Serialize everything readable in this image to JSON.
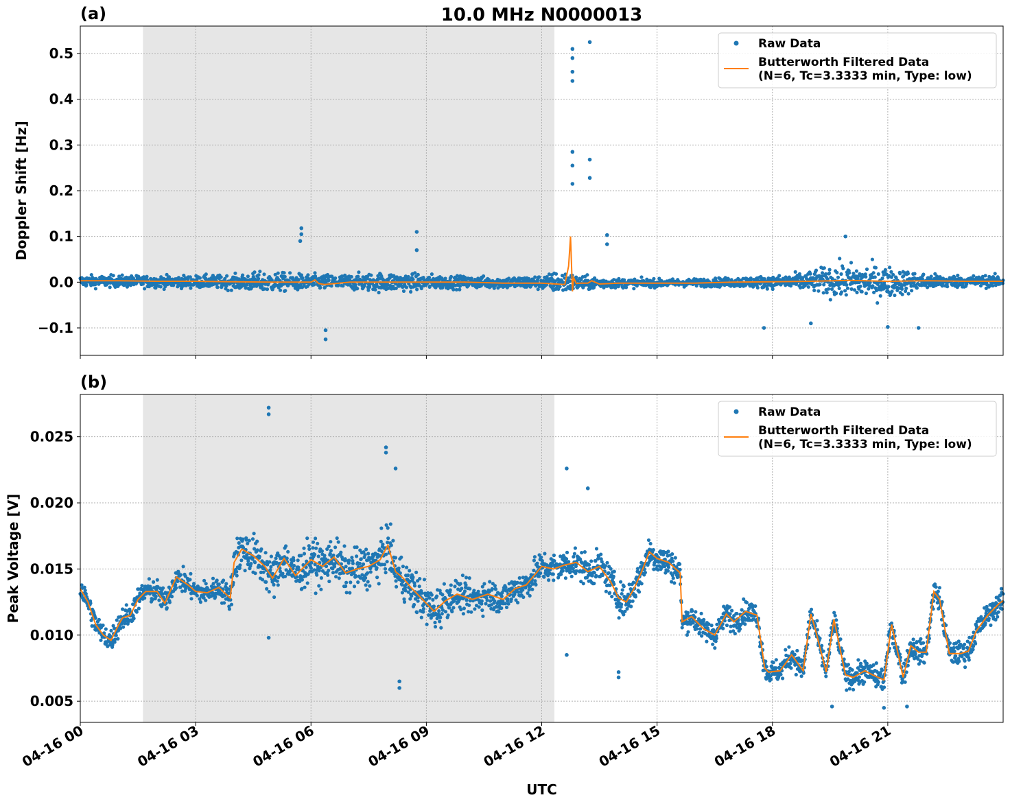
{
  "figure": {
    "title": "10.0 MHz N0000013",
    "xlabel": "UTC"
  },
  "colors": {
    "raw": "#1f77b4",
    "filtered": "#ff7f0e",
    "shade": "#e6e6e6",
    "grid": "#b0b0b0"
  },
  "legend": {
    "raw_label": "Raw Data",
    "filtered_line1": "Butterworth Filtered Data",
    "filtered_line2": "(N=6, Tc=3.3333 min, Type: low)"
  },
  "chart_data": [
    {
      "type": "scatter",
      "panel_label": "(a)",
      "title": "10.0 MHz N0000013",
      "xlabel": "",
      "ylabel": "Doppler Shift [Hz]",
      "xlim_hours": [
        0,
        24
      ],
      "ylim": [
        -0.16,
        0.56
      ],
      "yticks": [
        -0.1,
        0.0,
        0.1,
        0.2,
        0.3,
        0.4,
        0.5
      ],
      "ytick_labels": [
        "−0.1",
        "0.0",
        "0.1",
        "0.2",
        "0.3",
        "0.4",
        "0.5"
      ],
      "shaded_region_hours": [
        1.63,
        12.33
      ],
      "grid": true,
      "legend_position": "top-right",
      "series": [
        {
          "name": "Raw Data",
          "style": "points",
          "band_profile": {
            "x_hours": [
              0,
              1,
              2,
              3,
              4,
              4.5,
              5,
              6,
              7,
              8,
              9,
              10,
              11,
              12,
              12.5,
              13,
              14,
              15,
              16,
              17,
              17.5,
              18,
              19,
              19.5,
              20,
              21,
              22,
              23,
              24
            ],
            "center": [
              0.002,
              0.002,
              0.001,
              0.001,
              0.0,
              0.0,
              0.0,
              0.0,
              0.0,
              0.0,
              0.0,
              0.0,
              -0.001,
              -0.001,
              0.0,
              -0.002,
              -0.002,
              -0.002,
              -0.001,
              0.0,
              0.0,
              0.0,
              0.002,
              0.003,
              0.002,
              0.0,
              0.001,
              0.002,
              0.002
            ],
            "halfwidth": [
              0.015,
              0.015,
              0.015,
              0.016,
              0.018,
              0.025,
              0.025,
              0.02,
              0.02,
              0.025,
              0.02,
              0.015,
              0.015,
              0.018,
              0.03,
              0.018,
              0.012,
              0.01,
              0.01,
              0.012,
              0.015,
              0.015,
              0.025,
              0.04,
              0.045,
              0.04,
              0.02,
              0.015,
              0.015
            ]
          },
          "outliers": [
            {
              "x": 5.75,
              "y": 0.118
            },
            {
              "x": 5.75,
              "y": 0.105
            },
            {
              "x": 5.72,
              "y": 0.09
            },
            {
              "x": 6.38,
              "y": -0.105
            },
            {
              "x": 6.38,
              "y": -0.125
            },
            {
              "x": 8.75,
              "y": 0.11
            },
            {
              "x": 8.75,
              "y": 0.07
            },
            {
              "x": 12.8,
              "y": 0.51
            },
            {
              "x": 12.8,
              "y": 0.49
            },
            {
              "x": 12.8,
              "y": 0.46
            },
            {
              "x": 12.8,
              "y": 0.44
            },
            {
              "x": 12.8,
              "y": 0.285
            },
            {
              "x": 12.8,
              "y": 0.255
            },
            {
              "x": 12.8,
              "y": 0.215
            },
            {
              "x": 13.25,
              "y": 0.525
            },
            {
              "x": 13.25,
              "y": 0.268
            },
            {
              "x": 13.25,
              "y": 0.228
            },
            {
              "x": 13.7,
              "y": 0.103
            },
            {
              "x": 13.7,
              "y": 0.083
            },
            {
              "x": 17.78,
              "y": -0.1
            },
            {
              "x": 19.0,
              "y": -0.09
            },
            {
              "x": 19.9,
              "y": 0.1
            },
            {
              "x": 21.0,
              "y": -0.098
            },
            {
              "x": 21.8,
              "y": -0.1
            }
          ]
        },
        {
          "name": "Butterworth Filtered Data\n(N=6, Tc=3.3333 min, Type: low)",
          "style": "line",
          "x_hours": [
            0,
            1,
            2,
            3,
            4,
            5,
            6,
            6.1,
            6.2,
            6.35,
            7,
            8,
            9,
            10,
            11,
            12,
            12.6,
            12.7,
            12.75,
            12.8,
            12.83,
            12.9,
            13.0,
            13.2,
            13.3,
            13.5,
            14,
            15,
            16,
            17,
            18,
            19,
            20,
            21,
            22,
            23,
            24
          ],
          "y": [
            0.003,
            0.003,
            0.002,
            0.002,
            0.001,
            0.0,
            0.0,
            0.005,
            -0.003,
            -0.005,
            0.0,
            0.0,
            0.0,
            0.0,
            -0.002,
            -0.002,
            -0.005,
            0.035,
            0.1,
            -0.02,
            0.01,
            -0.003,
            -0.002,
            -0.002,
            0.003,
            -0.004,
            -0.002,
            -0.002,
            -0.002,
            0.0,
            0.001,
            0.002,
            0.004,
            0.002,
            0.003,
            0.002,
            0.002
          ]
        }
      ]
    },
    {
      "type": "scatter",
      "panel_label": "(b)",
      "xlabel": "UTC",
      "ylabel": "Peak Voltage [V]",
      "xlim_hours": [
        0,
        24
      ],
      "ylim": [
        0.0034,
        0.0282
      ],
      "yticks": [
        0.005,
        0.01,
        0.015,
        0.02,
        0.025
      ],
      "ytick_labels": [
        "0.005",
        "0.010",
        "0.015",
        "0.020",
        "0.025"
      ],
      "xtick_labels": [
        "04-16 00",
        "04-16 03",
        "04-16 06",
        "04-16 09",
        "04-16 12",
        "04-16 15",
        "04-16 18",
        "04-16 21"
      ],
      "xtick_hours": [
        0,
        3,
        6,
        9,
        12,
        15,
        18,
        21
      ],
      "shaded_region_hours": [
        1.63,
        12.33
      ],
      "grid": true,
      "legend_position": "top-right",
      "series": [
        {
          "name": "Raw Data",
          "style": "points",
          "spread": [
            {
              "x_hours": [
                0,
                3.9
              ],
              "halfwidth": 0.0009
            },
            {
              "x_hours": [
                3.9,
                9.5
              ],
              "halfwidth": 0.0016
            },
            {
              "x_hours": [
                9.5,
                15.6
              ],
              "halfwidth": 0.0012
            },
            {
              "x_hours": [
                15.6,
                24
              ],
              "halfwidth": 0.0009
            }
          ],
          "outliers": [
            {
              "x": 4.9,
              "y": 0.0272
            },
            {
              "x": 4.9,
              "y": 0.0267
            },
            {
              "x": 4.9,
              "y": 0.0098
            },
            {
              "x": 7.95,
              "y": 0.0242
            },
            {
              "x": 7.95,
              "y": 0.0238
            },
            {
              "x": 8.2,
              "y": 0.0226
            },
            {
              "x": 8.3,
              "y": 0.006
            },
            {
              "x": 8.3,
              "y": 0.0065
            },
            {
              "x": 12.65,
              "y": 0.0226
            },
            {
              "x": 12.65,
              "y": 0.0085
            },
            {
              "x": 13.2,
              "y": 0.0211
            },
            {
              "x": 14.0,
              "y": 0.0068
            },
            {
              "x": 14.0,
              "y": 0.0072
            },
            {
              "x": 19.55,
              "y": 0.0046
            },
            {
              "x": 20.9,
              "y": 0.0045
            },
            {
              "x": 21.5,
              "y": 0.0046
            }
          ]
        },
        {
          "name": "Butterworth Filtered Data\n(N=6, Tc=3.3333 min, Type: low)",
          "style": "line",
          "x_hours": [
            0,
            0.2,
            0.4,
            0.6,
            0.8,
            1.0,
            1.1,
            1.3,
            1.5,
            1.7,
            2.0,
            2.2,
            2.5,
            2.8,
            3.0,
            3.3,
            3.6,
            3.9,
            4.0,
            4.2,
            4.5,
            4.8,
            5.0,
            5.3,
            5.6,
            6.0,
            6.3,
            6.6,
            6.9,
            7.2,
            7.5,
            7.8,
            8.0,
            8.2,
            8.4,
            8.6,
            8.9,
            9.2,
            9.5,
            9.8,
            10.2,
            10.6,
            11.0,
            11.3,
            11.6,
            12.0,
            12.3,
            12.6,
            12.9,
            13.2,
            13.5,
            13.8,
            14.0,
            14.2,
            14.4,
            14.6,
            14.8,
            15.0,
            15.3,
            15.6,
            15.65,
            15.9,
            16.2,
            16.5,
            16.8,
            17.0,
            17.3,
            17.6,
            17.8,
            17.9,
            18.2,
            18.5,
            18.8,
            19.0,
            19.1,
            19.4,
            19.6,
            19.9,
            20.1,
            20.4,
            20.6,
            20.9,
            21.1,
            21.4,
            21.6,
            21.8,
            22.0,
            22.2,
            22.35,
            22.6,
            22.9,
            23.1,
            23.3,
            23.6,
            23.9,
            24.0
          ],
          "y": [
            0.0135,
            0.0125,
            0.0108,
            0.01,
            0.0096,
            0.0108,
            0.0113,
            0.0115,
            0.0127,
            0.0133,
            0.0133,
            0.0124,
            0.0144,
            0.0138,
            0.0133,
            0.0132,
            0.0136,
            0.0128,
            0.0155,
            0.0165,
            0.016,
            0.0152,
            0.0143,
            0.0158,
            0.0145,
            0.0157,
            0.0152,
            0.0159,
            0.0147,
            0.015,
            0.0152,
            0.0157,
            0.0168,
            0.0148,
            0.0143,
            0.0136,
            0.0127,
            0.0118,
            0.0126,
            0.0131,
            0.0127,
            0.0131,
            0.0127,
            0.0135,
            0.0138,
            0.0152,
            0.015,
            0.0153,
            0.0155,
            0.0148,
            0.0152,
            0.014,
            0.0128,
            0.0125,
            0.0135,
            0.0148,
            0.0163,
            0.0158,
            0.0155,
            0.0147,
            0.011,
            0.0114,
            0.0105,
            0.01,
            0.0116,
            0.011,
            0.0118,
            0.0115,
            0.0075,
            0.0072,
            0.0073,
            0.0085,
            0.0073,
            0.0116,
            0.0106,
            0.0072,
            0.0112,
            0.007,
            0.0068,
            0.0073,
            0.007,
            0.0066,
            0.0108,
            0.0068,
            0.0092,
            0.0087,
            0.0087,
            0.0133,
            0.0127,
            0.0086,
            0.0086,
            0.0088,
            0.0103,
            0.0115,
            0.0124,
            0.0126
          ]
        }
      ]
    }
  ]
}
